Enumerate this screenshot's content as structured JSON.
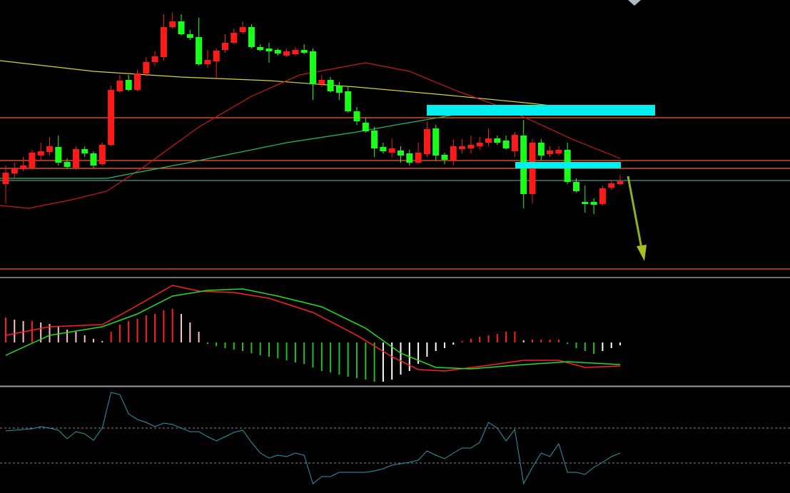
{
  "chart_data": [
    {
      "type": "candlestick",
      "up_color": "#ff1a1a",
      "down_color": "#1aff1a",
      "ylim": [
        0,
        385
      ],
      "open": [
        127,
        142,
        148,
        150,
        167,
        172,
        179,
        158,
        150,
        176,
        170,
        155,
        182,
        257,
        273,
        259,
        282,
        298,
        305,
        347,
        355,
        337,
        333,
        295,
        299,
        315,
        325,
        340,
        347,
        319,
        317,
        315,
        307,
        309,
        315,
        313,
        267,
        273,
        265,
        257,
        229,
        213,
        202,
        179,
        171,
        174,
        170,
        157,
        169,
        205,
        168,
        160,
        176,
        177,
        180,
        185,
        191,
        188,
        173,
        195,
        113,
        185,
        169,
        170,
        175,
        130,
        102,
        102,
        99,
        122,
        127
      ],
      "high": [
        153,
        157,
        165,
        175,
        185,
        193,
        195,
        163,
        180,
        180,
        173,
        185,
        265,
        280,
        280,
        287,
        305,
        313,
        365,
        367,
        365,
        343,
        360,
        315,
        317,
        337,
        345,
        355,
        351,
        323,
        325,
        317,
        317,
        319,
        323,
        317,
        280,
        277,
        270,
        263,
        235,
        220,
        207,
        185,
        190,
        180,
        175,
        185,
        215,
        210,
        171,
        190,
        190,
        195,
        193,
        205,
        195,
        195,
        200,
        217,
        190,
        190,
        180,
        180,
        185,
        135,
        125,
        107,
        125,
        133,
        140
      ],
      "low": [
        100,
        135,
        145,
        147,
        160,
        167,
        153,
        148,
        147,
        165,
        149,
        153,
        180,
        255,
        257,
        257,
        278,
        293,
        300,
        345,
        335,
        329,
        293,
        290,
        275,
        311,
        323,
        337,
        317,
        313,
        297,
        307,
        305,
        307,
        309,
        245,
        263,
        255,
        245,
        227,
        210,
        199,
        165,
        170,
        165,
        157,
        153,
        155,
        165,
        160,
        155,
        153,
        170,
        170,
        175,
        180,
        182,
        175,
        165,
        93,
        100,
        160,
        165,
        167,
        127,
        115,
        87,
        85,
        97,
        119,
        125
      ],
      "close": [
        143,
        149,
        153,
        171,
        173,
        180,
        157,
        151,
        176,
        170,
        153,
        182,
        259,
        272,
        259,
        282,
        298,
        306,
        347,
        355,
        337,
        332,
        295,
        301,
        314,
        325,
        339,
        347,
        319,
        315,
        313,
        310,
        313,
        315,
        311,
        267,
        273,
        257,
        255,
        229,
        215,
        201,
        177,
        173,
        177,
        167,
        157,
        171,
        204,
        167,
        161,
        180,
        180,
        182,
        185,
        191,
        185,
        177,
        196,
        113,
        185,
        167,
        174,
        175,
        130,
        117,
        99,
        98,
        121,
        128,
        131
      ],
      "overlays": [
        {
          "color": "#d8d820",
          "x": [
            -0.65,
            10,
            20,
            30,
            40,
            50,
            60,
            70
          ],
          "values": [
            300,
            285,
            277,
            272,
            263,
            252,
            240,
            225
          ]
        },
        {
          "color": "#d01818",
          "x": [
            -0.65,
            2.6,
            7.5,
            11.5,
            15.6,
            22,
            28,
            33.5,
            41,
            46,
            51.5,
            56.5,
            61,
            64.5,
            70
          ],
          "values": [
            97,
            93,
            105,
            117,
            150,
            207,
            250,
            280,
            297,
            285,
            257,
            235,
            210,
            190,
            163
          ]
        },
        {
          "color": "#20c060",
          "x": [
            -0.65,
            11.5,
            20,
            32,
            40,
            44.5,
            52.5,
            70
          ],
          "values": [
            135,
            135,
            155,
            185,
            200,
            210,
            227,
            225
          ]
        }
      ],
      "levels": [
        {
          "value": 220,
          "color": "#ff5a28"
        },
        {
          "value": 160,
          "color": "#ff5a28"
        },
        {
          "value": 149,
          "color": "#ff5a28"
        },
        {
          "value": 8,
          "color": "#ff5a28"
        },
        {
          "value": 132,
          "color": "#5a8c8c"
        }
      ]
    },
    {
      "type": "macd",
      "ylim": [
        -60,
        90
      ],
      "bar_colors": [
        "#ff2020",
        "#ffc0cb",
        "#20c020",
        "#ffffff"
      ],
      "values": [
        35,
        32,
        30,
        30,
        28,
        26,
        22,
        18,
        15,
        10,
        5,
        2,
        15,
        25,
        30,
        33,
        38,
        40,
        45,
        47,
        40,
        28,
        15,
        -2,
        -5,
        -8,
        -10,
        -12,
        -15,
        -18,
        -20,
        -22,
        -25,
        -28,
        -30,
        -35,
        -40,
        -42,
        -45,
        -48,
        -50,
        -52,
        -55,
        -55,
        -52,
        -45,
        -40,
        -30,
        -20,
        -12,
        -8,
        -3,
        2,
        5,
        8,
        10,
        12,
        15,
        15,
        3,
        4,
        4,
        4,
        4,
        -2,
        -8,
        -12,
        -16,
        -12,
        -8,
        -4
      ],
      "series": [
        {
          "color": "#ff2020",
          "x": [
            0,
            5,
            11,
            14,
            19,
            22,
            26,
            30,
            35,
            40,
            44,
            47,
            50,
            55,
            59,
            63,
            66,
            70
          ],
          "values": [
            10,
            22,
            25,
            45,
            80,
            72,
            70,
            62,
            42,
            10,
            -20,
            -38,
            -40,
            -32,
            -25,
            -25,
            -35,
            -33
          ]
        },
        {
          "color": "#20e020",
          "x": [
            0,
            5,
            11,
            15,
            19,
            23,
            27,
            31,
            36,
            41,
            45,
            49,
            53,
            58,
            64,
            70
          ],
          "values": [
            -18,
            10,
            22,
            40,
            65,
            73,
            75,
            65,
            50,
            20,
            -15,
            -35,
            -37,
            -32,
            -27,
            -31
          ]
        }
      ]
    },
    {
      "type": "line",
      "ylim": [
        0,
        145
      ],
      "color": "#2a9aa8",
      "levels": [
        90,
        41
      ],
      "values": [
        86,
        87,
        88,
        89,
        92,
        90,
        87,
        75,
        85,
        82,
        73,
        90,
        140,
        137,
        110,
        102,
        98,
        92,
        97,
        95,
        90,
        85,
        85,
        78,
        72,
        78,
        84,
        87,
        70,
        55,
        48,
        52,
        50,
        55,
        52,
        12,
        22,
        22,
        28,
        28,
        28,
        28,
        30,
        33,
        38,
        40,
        42,
        45,
        58,
        52,
        47,
        55,
        62,
        62,
        70,
        98,
        90,
        72,
        88,
        12,
        35,
        55,
        50,
        68,
        28,
        28,
        25,
        35,
        42,
        50,
        55
      ]
    }
  ]
}
